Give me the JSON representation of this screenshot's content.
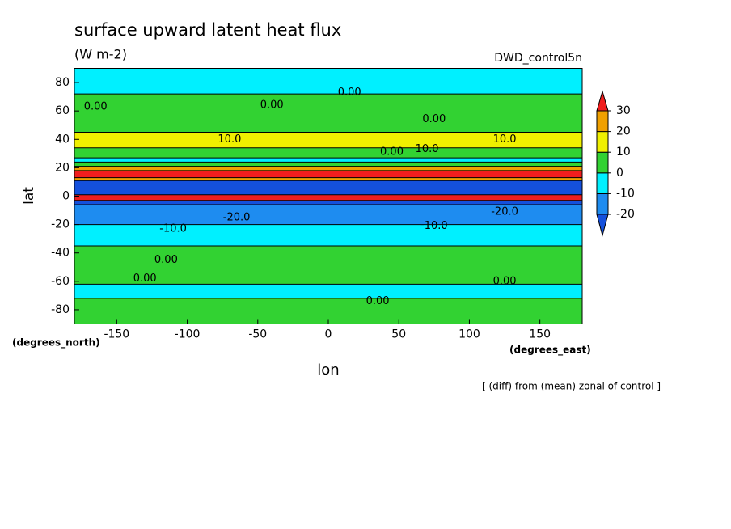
{
  "chart_data": {
    "type": "contour",
    "title": "surface upward latent heat flux",
    "units": "(W m-2)",
    "run": "DWD_control5n",
    "xlabel": "lon",
    "ylabel": "lat",
    "xunits": "(degrees_east)",
    "yunits": "(degrees_north)",
    "note": "[ (diff) from (mean) zonal of control ]",
    "xlim": [
      -180,
      180
    ],
    "ylim": [
      -90,
      90
    ],
    "xticks": [
      -150,
      -100,
      -50,
      0,
      50,
      100,
      150
    ],
    "yticks": [
      -80,
      -60,
      -40,
      -20,
      0,
      20,
      40,
      60,
      80
    ],
    "levels": [
      -20,
      -10,
      0,
      10,
      20,
      30
    ],
    "colors": [
      "#1450dc",
      "#1e8cf0",
      "#00f0ff",
      "#32d232",
      "#f0f000",
      "#f0a000",
      "#f01e1e"
    ],
    "lat_edges": [
      90,
      72,
      53,
      45,
      34,
      27,
      24,
      21,
      18,
      13,
      11,
      1,
      -3,
      -6,
      -20,
      -35,
      -62,
      -72,
      -90
    ],
    "values": [
      -5,
      5,
      5,
      15,
      5,
      -5,
      5,
      25,
      35,
      25,
      -25,
      35,
      -25,
      -15,
      -5,
      5,
      -5,
      5
    ],
    "contour_labels": [
      {
        "value": 0,
        "label": "0.00",
        "lon": -165,
        "lat": 63
      },
      {
        "value": 0,
        "label": "0.00",
        "lon": -40,
        "lat": 64
      },
      {
        "value": 0,
        "label": "0.00",
        "lon": 15,
        "lat": 73
      },
      {
        "value": 0,
        "label": "0.00",
        "lon": 75,
        "lat": 54
      },
      {
        "value": 10,
        "label": "10.0",
        "lon": -70,
        "lat": 40
      },
      {
        "value": 10,
        "label": "10.0",
        "lon": 125,
        "lat": 40
      },
      {
        "value": 0,
        "label": "0.00",
        "lon": 45,
        "lat": 31
      },
      {
        "value": 10,
        "label": "10.0",
        "lon": 70,
        "lat": 33
      },
      {
        "value": -20,
        "label": "-20.0",
        "lon": -65,
        "lat": -15
      },
      {
        "value": -10,
        "label": "-10.0",
        "lon": -110,
        "lat": -23
      },
      {
        "value": -10,
        "label": "-10.0",
        "lon": 75,
        "lat": -21
      },
      {
        "value": -20,
        "label": "-20.0",
        "lon": 125,
        "lat": -11
      },
      {
        "value": 0,
        "label": "0.00",
        "lon": -115,
        "lat": -45
      },
      {
        "value": 0,
        "label": "0.00",
        "lon": -130,
        "lat": -58
      },
      {
        "value": 0,
        "label": "0.00",
        "lon": 35,
        "lat": -74
      },
      {
        "value": 0,
        "label": "0.00",
        "lon": 125,
        "lat": -60
      }
    ]
  }
}
